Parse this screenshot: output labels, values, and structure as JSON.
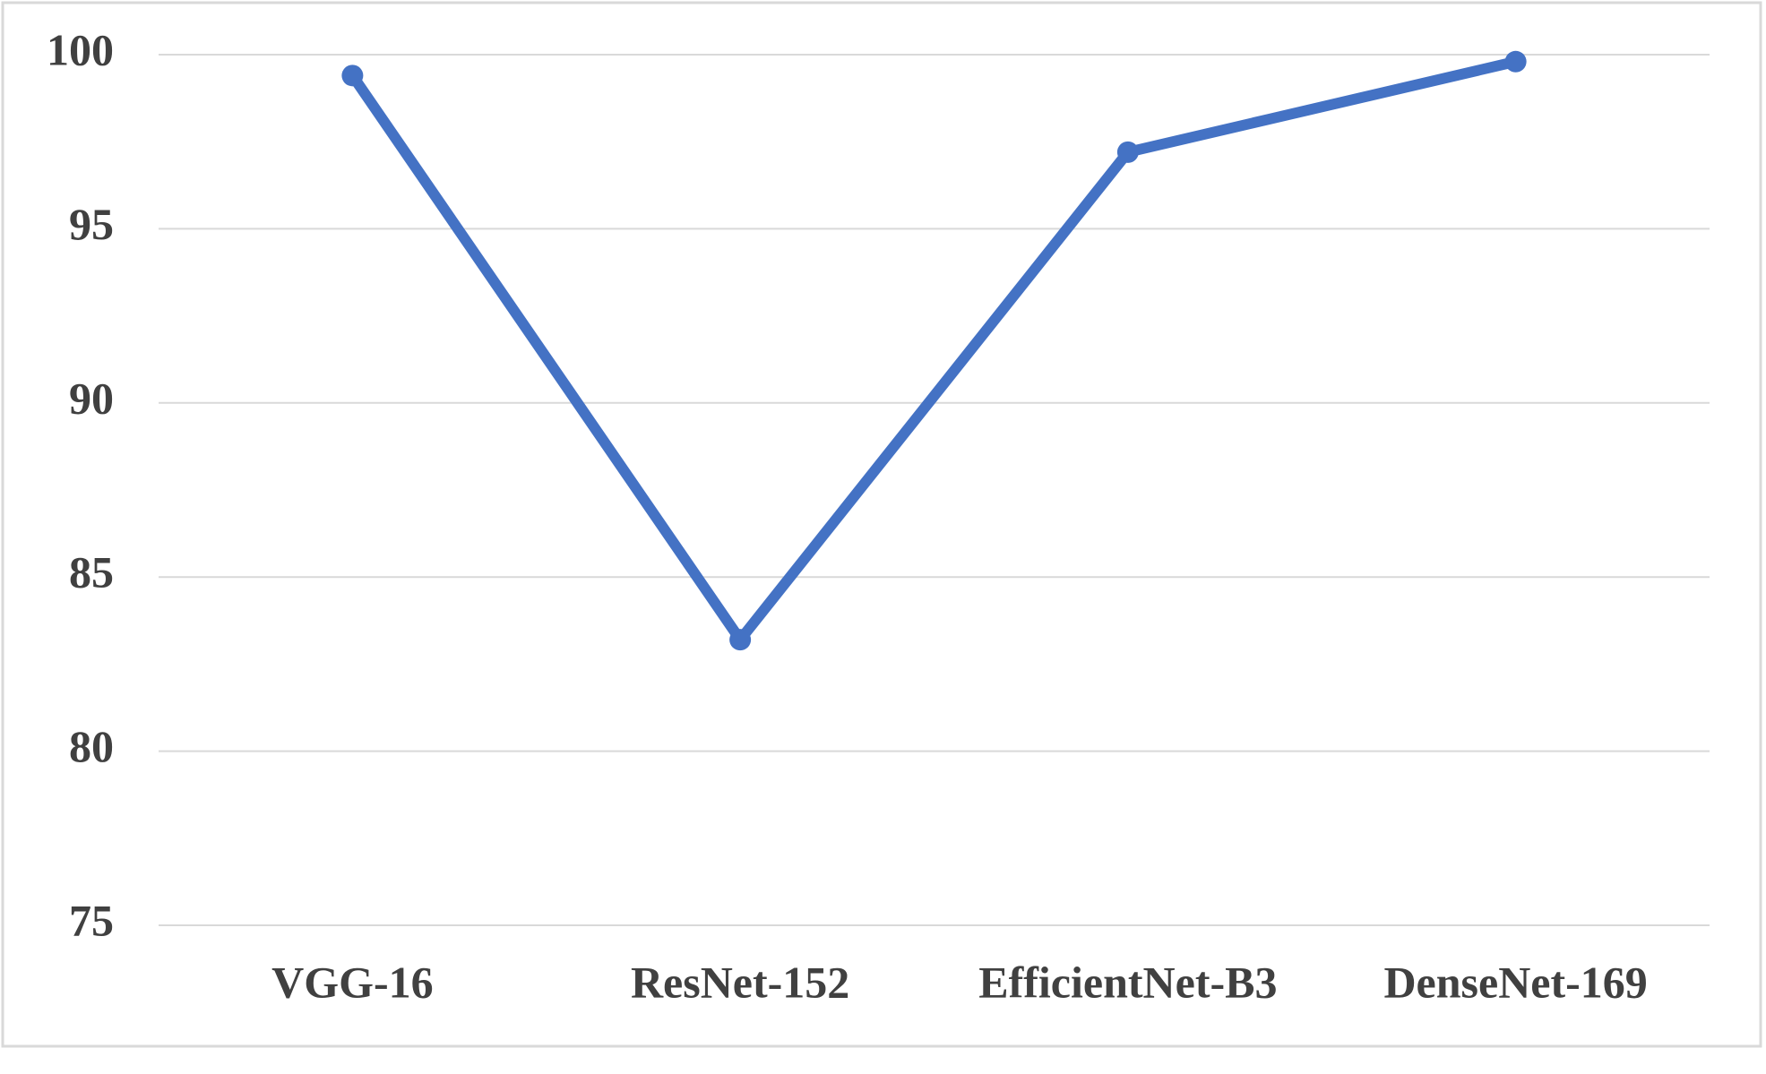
{
  "chart_data": {
    "type": "line",
    "categories": [
      "VGG-16",
      "ResNet-152",
      "EfficientNet-B3",
      "DenseNet-169"
    ],
    "series": [
      {
        "color": "#4472c4",
        "values": [
          99.4,
          83.2,
          97.2,
          99.8
        ]
      }
    ],
    "ylim": [
      75,
      100
    ],
    "yticks": [
      75,
      80,
      85,
      90,
      95,
      100
    ],
    "grid": true
  }
}
